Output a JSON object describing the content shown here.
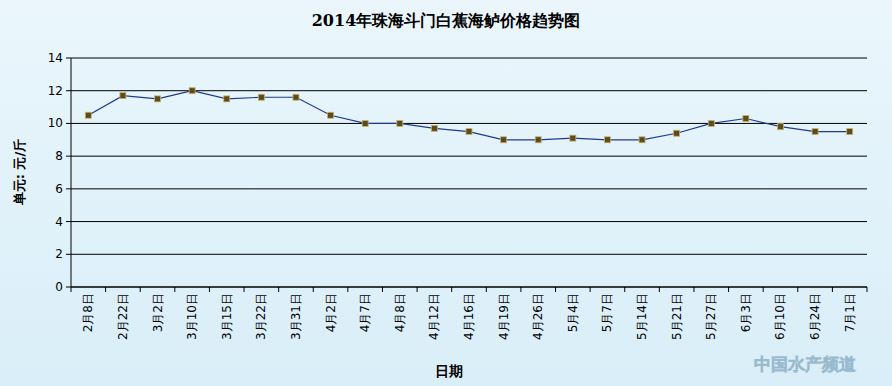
{
  "chart_data": {
    "type": "line",
    "title": "2014年珠海斗门白蕉海鲈价格趋势图",
    "x_label": "日期",
    "y_label": "单元: 元/斤",
    "annotations": [
      "中国水产频道"
    ],
    "categories": [
      "2月8日",
      "2月22日",
      "3月2日",
      "3月10日",
      "3月15日",
      "3月22日",
      "3月31日",
      "4月2日",
      "4月7日",
      "4月8日",
      "4月12日",
      "4月16日",
      "4月19日",
      "4月26日",
      "5月4日",
      "5月7日",
      "5月14日",
      "5月21日",
      "5月27日",
      "6月3日",
      "6月10日",
      "6月24日",
      "7月1日"
    ],
    "series": [
      {
        "name": "白蕉海鲈",
        "color": "#1f3a8c",
        "marker": "square",
        "values": [
          10.5,
          11.7,
          11.5,
          12.0,
          11.5,
          11.6,
          11.6,
          10.5,
          10.0,
          10.0,
          9.7,
          9.5,
          9.0,
          9.0,
          9.1,
          9.0,
          9.0,
          9.4,
          10.0,
          10.3,
          9.8,
          9.5,
          9.5
        ]
      }
    ],
    "ylim": [
      0,
      14
    ],
    "yticks": [
      0,
      2,
      4,
      6,
      8,
      10,
      12,
      14
    ],
    "grid": true
  }
}
